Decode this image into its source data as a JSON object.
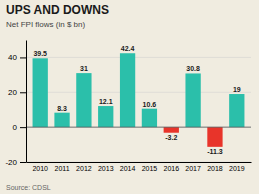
{
  "chart_data": {
    "type": "bar",
    "title": "UPS AND DOWNS",
    "subtitle": "Net FPI flows (in $ bn)",
    "annotations": [
      "Source: CDSL"
    ],
    "categories": [
      "2010",
      "2011",
      "2012",
      "2013",
      "2014",
      "2015",
      "2016",
      "2017",
      "2018",
      "2019"
    ],
    "values": [
      39.5,
      8.3,
      31,
      12.1,
      42.4,
      10.6,
      -3.2,
      30.8,
      -11.3,
      19
    ],
    "colors": [
      "#2bbfaa",
      "#2bbfaa",
      "#2bbfaa",
      "#2bbfaa",
      "#2bbfaa",
      "#2bbfaa",
      "#e8342a",
      "#2bbfaa",
      "#e8342a",
      "#2bbfaa"
    ],
    "ylim": [
      -20,
      50
    ],
    "yticks": [
      -20,
      0,
      20,
      40
    ],
    "grid": true,
    "data_labels": true
  }
}
